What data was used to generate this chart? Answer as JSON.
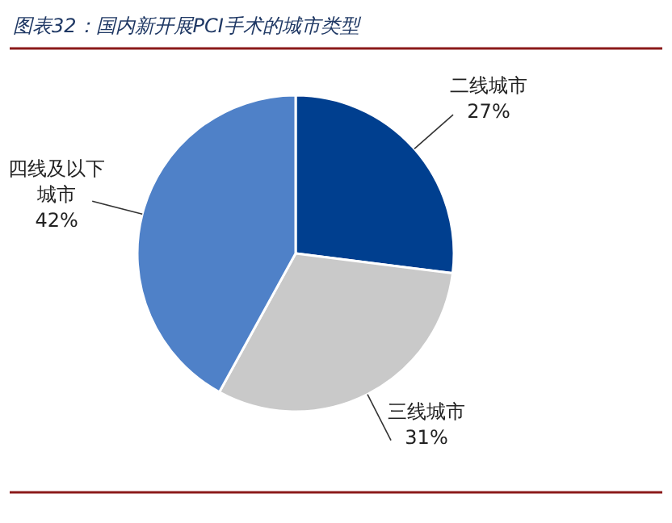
{
  "chart_data": {
    "type": "pie",
    "title": "图表32：国内新开展PCI手术的城市类型",
    "categories": [
      "二线城市",
      "三线城市",
      "四线及以下城市"
    ],
    "values": [
      27,
      31,
      42
    ],
    "colors": [
      "#003f8f",
      "#c9c9c9",
      "#4f81c8"
    ],
    "value_labels": [
      "27%",
      "31%",
      "42%"
    ]
  }
}
